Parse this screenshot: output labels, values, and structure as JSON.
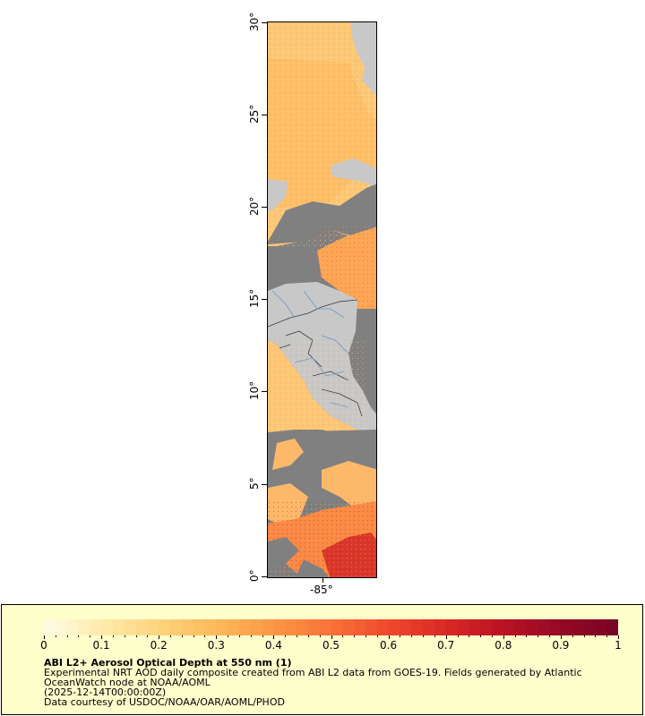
{
  "map": {
    "lat_ticks": [
      "0°",
      "5°",
      "10°",
      "15°",
      "20°",
      "25°",
      "30°"
    ],
    "lon_ticks": [
      "-85°"
    ],
    "colors": {
      "no_data": "#808080",
      "land": "#c8c8c8",
      "rivers": "#6f96c8",
      "borders": "#3c3c3c"
    }
  },
  "legend": {
    "scale_ticks": [
      "0",
      "0.1",
      "0.2",
      "0.3",
      "0.4",
      "0.5",
      "0.6",
      "0.7",
      "0.8",
      "0.9",
      "1"
    ],
    "colorbar_stops": [
      "#fffbe0",
      "#fee9a8",
      "#fdd27a",
      "#fdb85a",
      "#fc9645",
      "#fa7238",
      "#ef4a2e",
      "#da2a25",
      "#bc1323",
      "#970a25",
      "#7a0426"
    ],
    "title": "ABI L2+ Aerosol Optical Depth at 550 nm (1)",
    "line1": "Experimental NRT AOD daily composite created from ABI L2 data from GOES-19. Fields generated by Atlantic OceanWatch node at NOAA/AOML",
    "line2": "(2025-12-14T00:00:00Z)",
    "line3": "Data courtesy of USDOC/NOAA/OAR/AOML/PHOD"
  }
}
